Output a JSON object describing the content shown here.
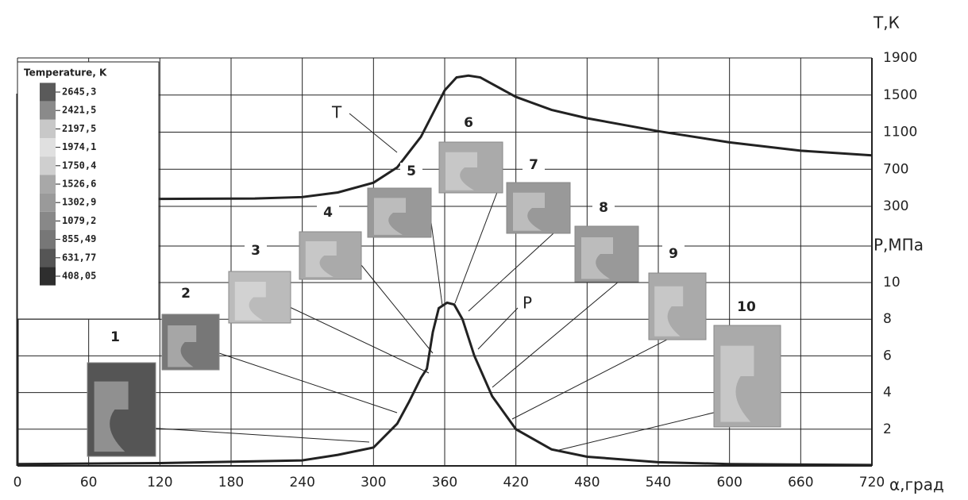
{
  "chart_data": {
    "type": "line",
    "x_label": "α,град",
    "y_label": "Р,МПа",
    "y2_label": "Т,К",
    "xlim": [
      0,
      720
    ],
    "xticks": [
      0,
      60,
      120,
      180,
      240,
      300,
      360,
      420,
      480,
      540,
      600,
      660,
      720
    ],
    "ylim": [
      0,
      10
    ],
    "yticks": [
      2,
      4,
      6,
      8,
      10
    ],
    "y2lim": [
      300,
      1900
    ],
    "y2ticks": [
      300,
      700,
      1100,
      1500,
      1900
    ],
    "grid": true,
    "series": [
      {
        "name": "T",
        "color": "#222222",
        "axis": "y2",
        "x": [
          0,
          120,
          200,
          240,
          270,
          300,
          320,
          340,
          350,
          360,
          370,
          380,
          390,
          420,
          450,
          480,
          540,
          600,
          660,
          720
        ],
        "values": [
          380,
          380,
          385,
          400,
          450,
          555,
          720,
          1050,
          1300,
          1550,
          1690,
          1710,
          1690,
          1480,
          1340,
          1250,
          1110,
          990,
          900,
          850
        ]
      },
      {
        "name": "P",
        "color": "#222222",
        "x": [
          0,
          120,
          240,
          270,
          300,
          320,
          330,
          340,
          345,
          350,
          355,
          362,
          368,
          375,
          385,
          400,
          420,
          450,
          480,
          540,
          600,
          720
        ],
        "values": [
          0.1,
          0.15,
          0.3,
          0.6,
          1.0,
          2.3,
          3.5,
          4.8,
          5.3,
          7.3,
          8.6,
          8.9,
          8.8,
          8.0,
          6.0,
          3.8,
          2.0,
          0.9,
          0.5,
          0.2,
          0.1,
          0.05
        ]
      }
    ],
    "colorbar": {
      "title": "Temperature, K",
      "labels": [
        "2645,3",
        "2421,5",
        "2197,5",
        "1974,1",
        "1750,4",
        "1526,6",
        "1302,9",
        "1079,2",
        "855,49",
        "631,77",
        "408,05"
      ]
    },
    "snapshots": [
      "1",
      "2",
      "3",
      "4",
      "5",
      "6",
      "7",
      "8",
      "9",
      "10"
    ]
  }
}
